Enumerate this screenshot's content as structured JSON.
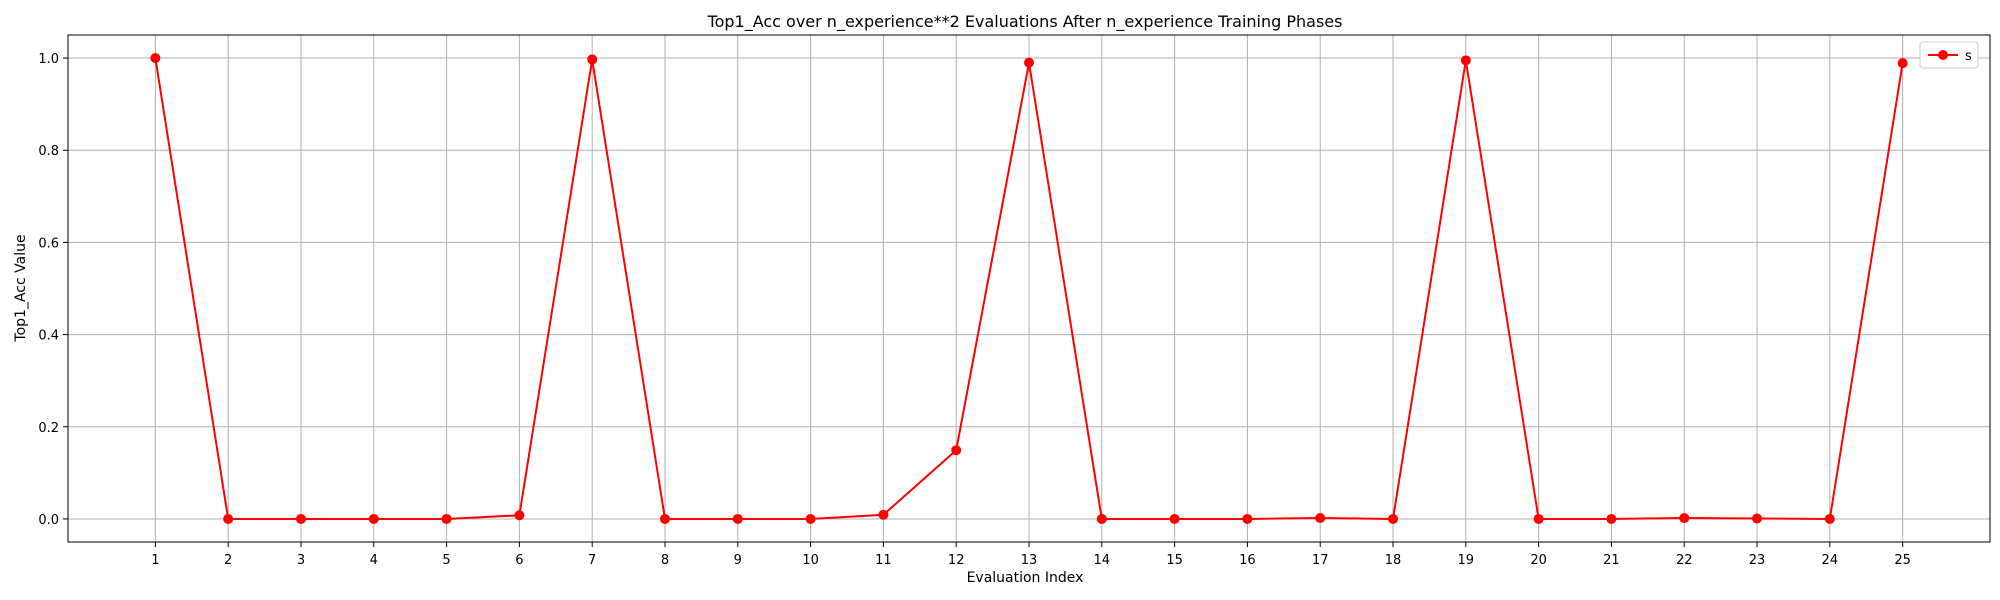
{
  "chart_data": {
    "type": "line",
    "title": "Top1_Acc over n_experience**2 Evaluations After n_experience Training Phases",
    "xlabel": "Evaluation Index",
    "ylabel": "Top1_Acc Value",
    "x": [
      1,
      2,
      3,
      4,
      5,
      6,
      7,
      8,
      9,
      10,
      11,
      12,
      13,
      14,
      15,
      16,
      17,
      18,
      19,
      20,
      21,
      22,
      23,
      24,
      25
    ],
    "xlim": [
      -0.2,
      26.2
    ],
    "ylim": [
      -0.05,
      1.05
    ],
    "yticks": [
      0.0,
      0.2,
      0.4,
      0.6,
      0.8,
      1.0
    ],
    "ytick_labels": [
      "0.0",
      "0.2",
      "0.4",
      "0.6",
      "0.8",
      "1.0"
    ],
    "grid": true,
    "legend_position": "top-right",
    "series": [
      {
        "name": "s",
        "color": "#ff0000",
        "marker": "circle",
        "values": [
          1.0,
          0.0,
          0.0,
          0.0,
          0.0,
          0.008,
          0.997,
          0.0,
          0.0,
          0.0,
          0.009,
          0.149,
          0.99,
          0.0,
          0.0,
          0.0,
          0.002,
          0.0,
          0.995,
          0.0,
          0.0,
          0.002,
          0.001,
          0.0,
          0.989
        ]
      }
    ]
  }
}
